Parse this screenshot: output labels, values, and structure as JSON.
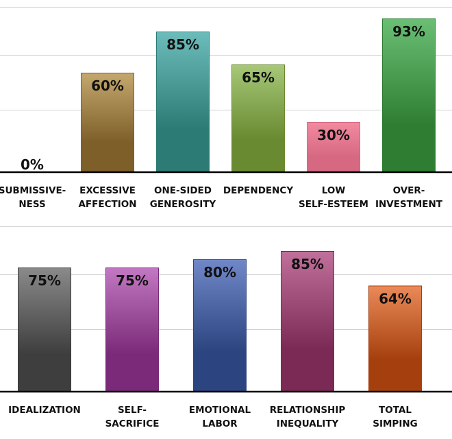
{
  "chart_data": [
    {
      "type": "bar",
      "title": "",
      "xlabel": "",
      "ylabel": "",
      "ylim": [
        0,
        100
      ],
      "grid": true,
      "legend": "none",
      "value_suffix": "%",
      "categories": [
        [
          "SUBMISSIVE-",
          "NESS"
        ],
        [
          "EXCESSIVE",
          "AFFECTION"
        ],
        [
          "ONE-SIDED",
          "GENEROSITY"
        ],
        [
          "DEPENDENCY"
        ],
        [
          "LOW",
          "SELF-ESTEEM"
        ],
        [
          "OVER-",
          "INVESTMENT"
        ]
      ],
      "values": [
        0,
        60,
        85,
        65,
        30,
        93
      ],
      "labels": [
        "0%",
        "60%",
        "85%",
        "65%",
        "30%",
        "93%"
      ],
      "colors": [
        [
          "#888888",
          "#555555"
        ],
        [
          "#c4a86e",
          "#7e5f2a"
        ],
        [
          "#6cbcbc",
          "#2c7b74"
        ],
        [
          "#a6c878",
          "#698a30"
        ],
        [
          "#f28aa0",
          "#d76882"
        ],
        [
          "#6abf74",
          "#2e7d32"
        ]
      ]
    },
    {
      "type": "bar",
      "title": "",
      "xlabel": "",
      "ylabel": "",
      "ylim": [
        0,
        100
      ],
      "grid": true,
      "legend": "none",
      "value_suffix": "%",
      "categories": [
        [
          "IDEALIZATION"
        ],
        [
          "SELF-",
          "SACRIFICE"
        ],
        [
          "EMOTIONAL",
          "LABOR"
        ],
        [
          "RELATIONSHIP",
          "INEQUALITY"
        ],
        [
          "TOTAL",
          "SIMPING"
        ]
      ],
      "values": [
        75,
        75,
        80,
        85,
        64
      ],
      "labels": [
        "75%",
        "75%",
        "80%",
        "85%",
        "64%"
      ],
      "colors": [
        [
          "#8a8a8a",
          "#3e3e3e"
        ],
        [
          "#c278c2",
          "#7a2a78"
        ],
        [
          "#7088c8",
          "#2c4580"
        ],
        [
          "#c0709a",
          "#7a2a55"
        ],
        [
          "#ea8a58",
          "#a5400e"
        ]
      ]
    }
  ]
}
